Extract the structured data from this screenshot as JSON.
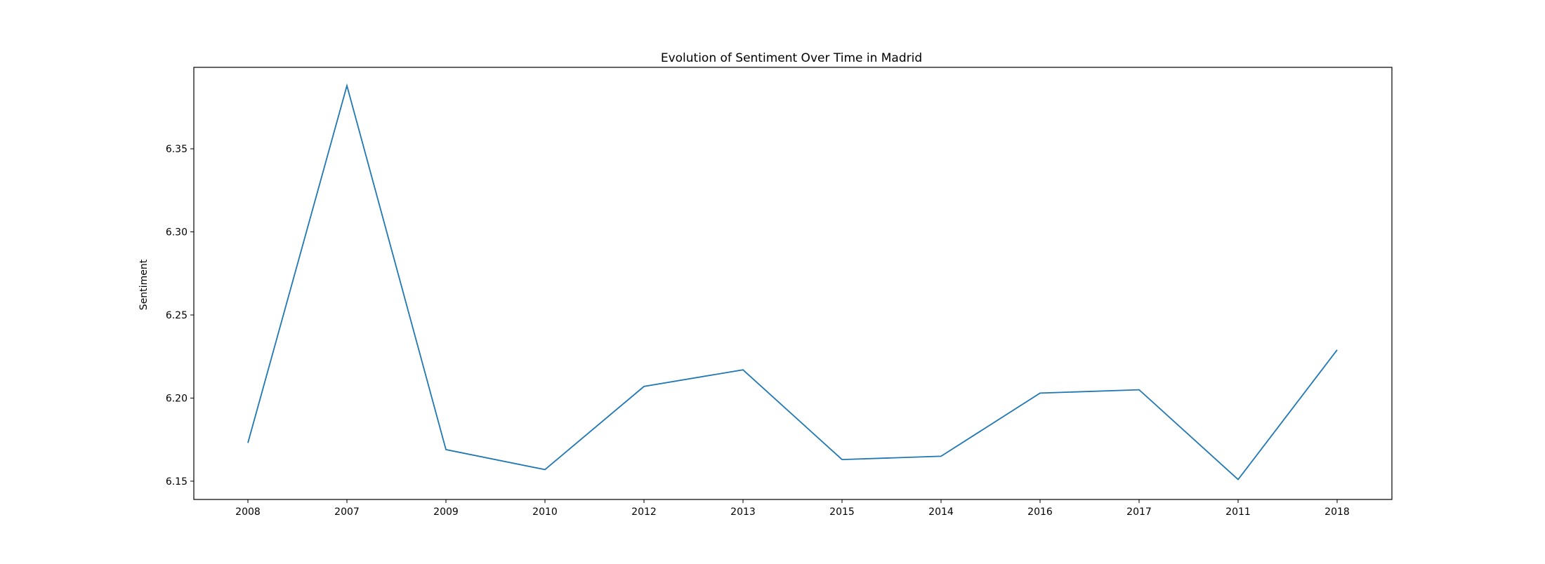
{
  "chart_data": {
    "type": "line",
    "title": "Evolution of Sentiment Over Time in Madrid",
    "xlabel": "",
    "ylabel": "Sentiment",
    "categories": [
      "2008",
      "2007",
      "2009",
      "2010",
      "2012",
      "2013",
      "2015",
      "2014",
      "2016",
      "2017",
      "2011",
      "2018"
    ],
    "series": [
      {
        "values": [
          6.173,
          6.388,
          6.169,
          6.157,
          6.207,
          6.217,
          6.163,
          6.165,
          6.203,
          6.205,
          6.151,
          6.229
        ]
      }
    ],
    "ylim": [
      6.139,
      6.399
    ],
    "yticks": [
      6.15,
      6.2,
      6.25,
      6.3,
      6.35
    ],
    "ytick_labels": [
      "6.15",
      "6.20",
      "6.25",
      "6.30",
      "6.35"
    ],
    "grid": false,
    "legend": "none",
    "colors": {
      "line": "#1f77b4",
      "axes": "#000000",
      "background": "#ffffff"
    }
  }
}
